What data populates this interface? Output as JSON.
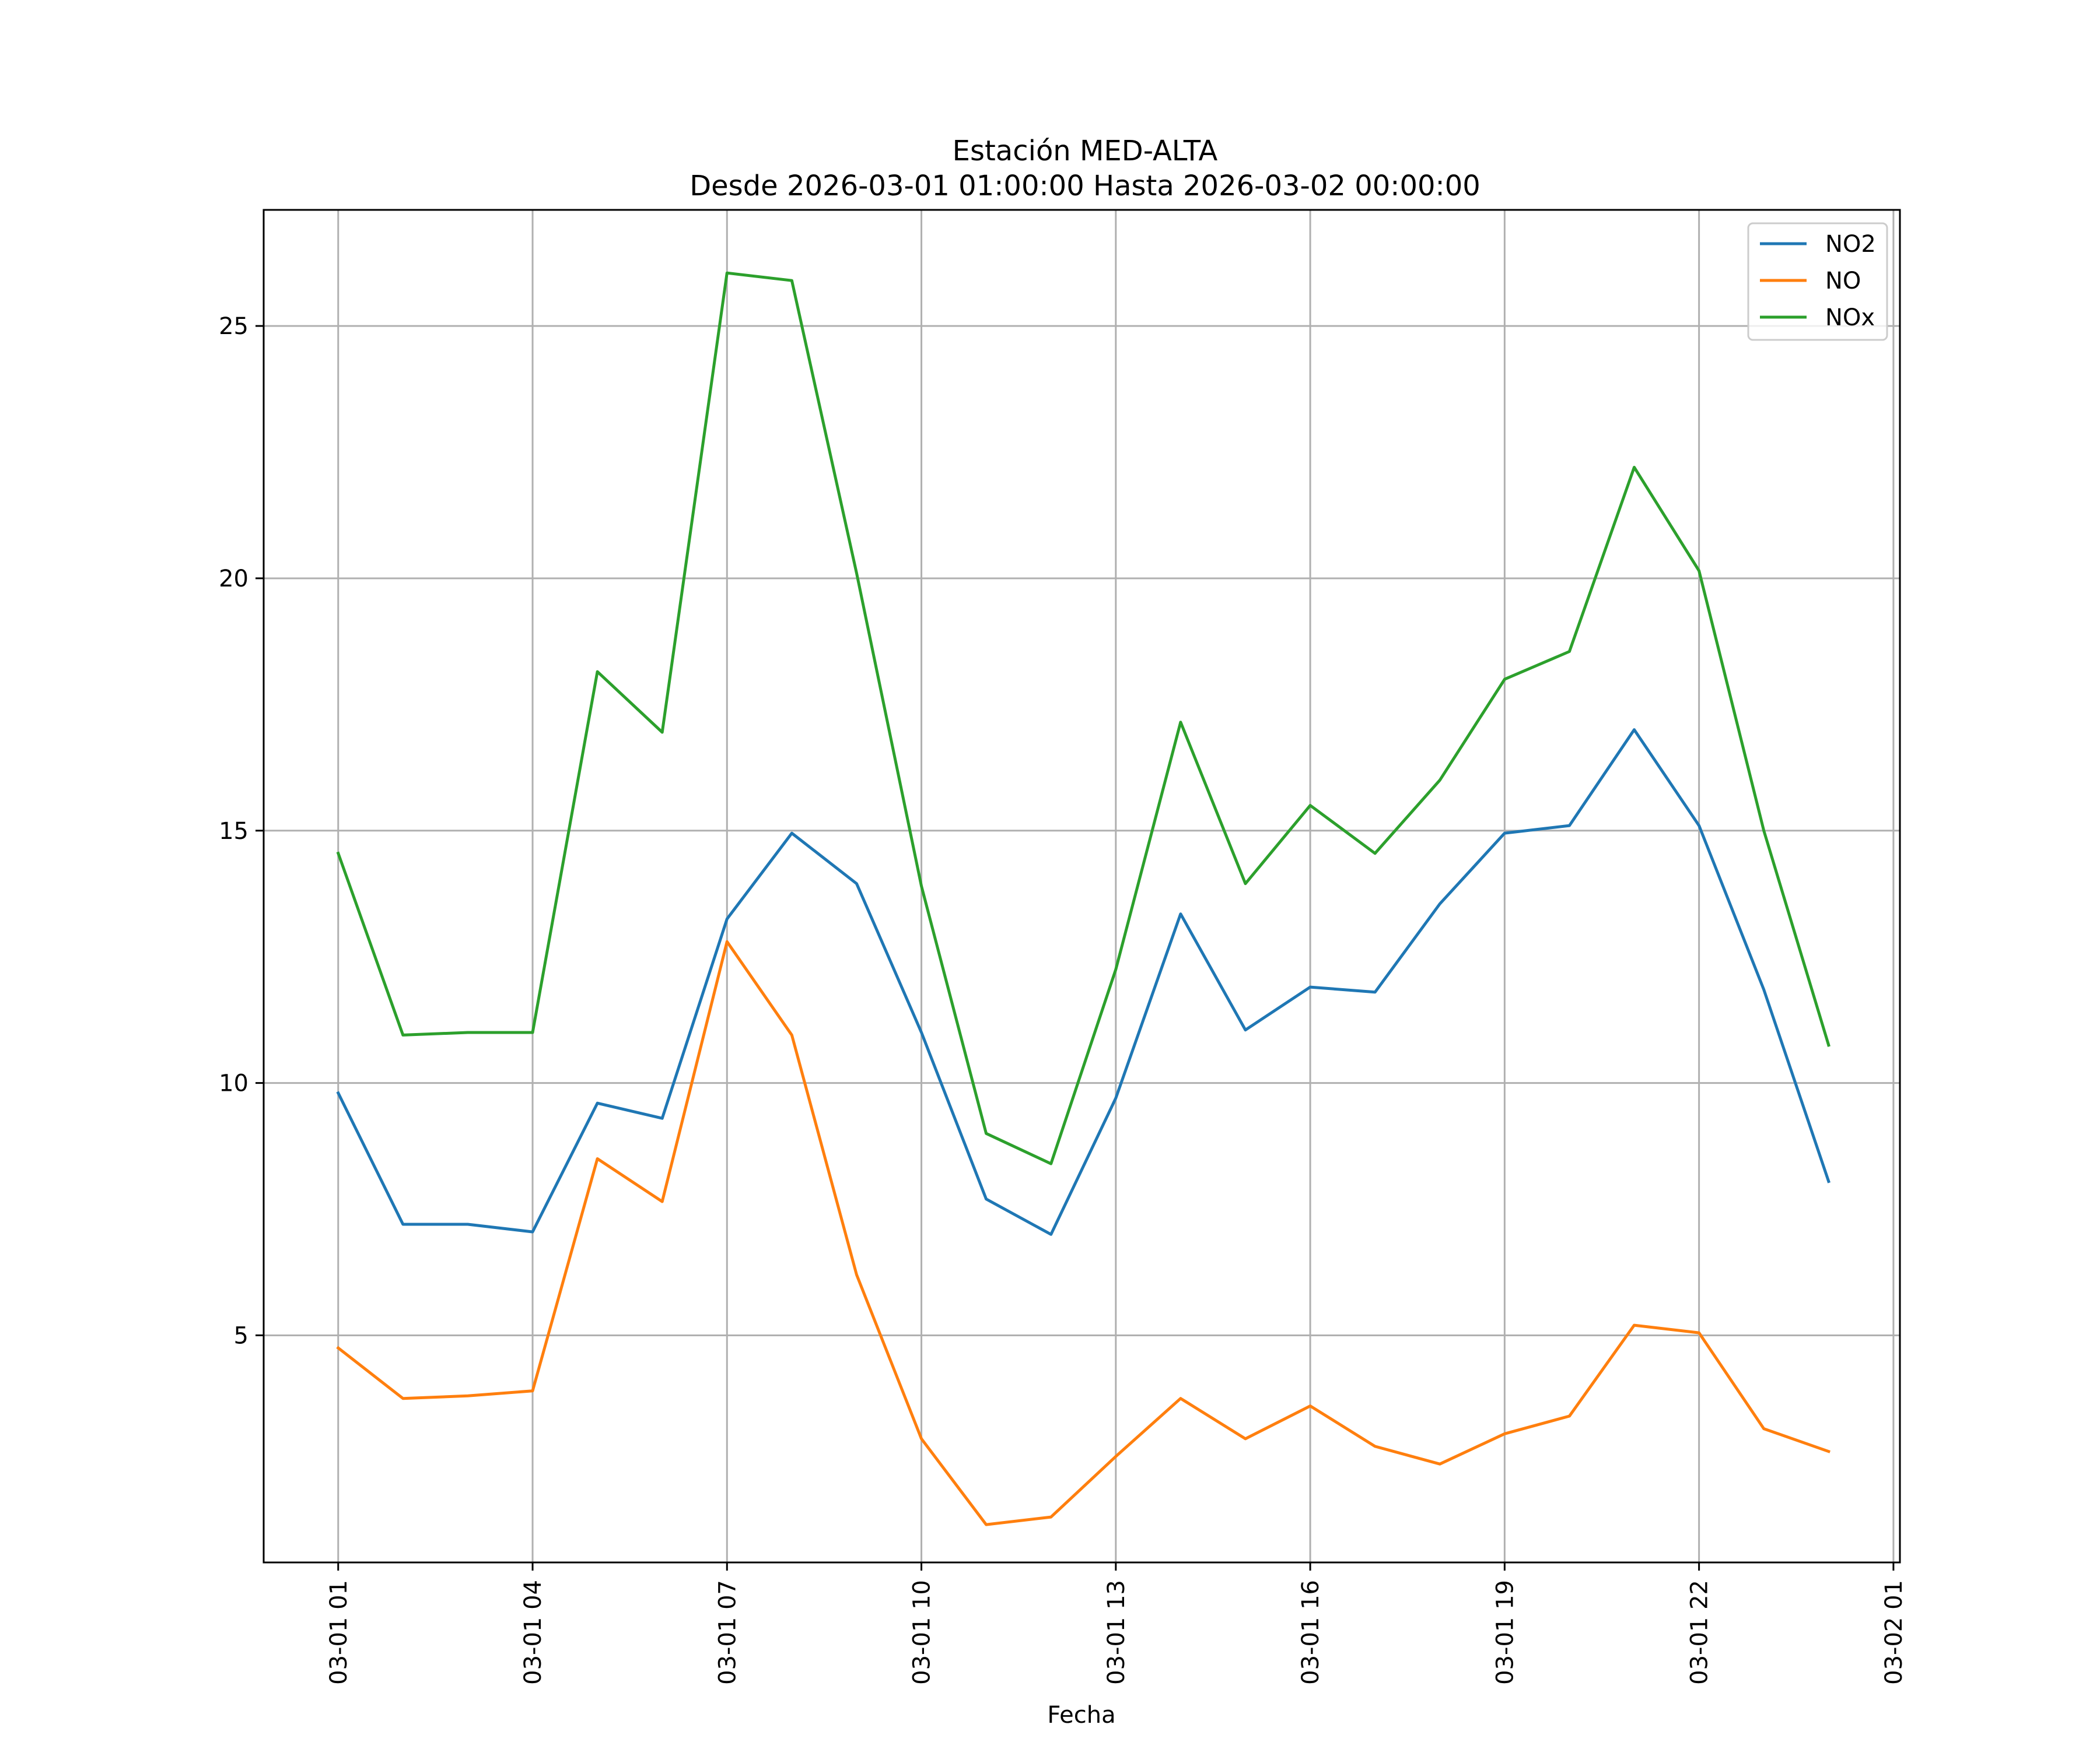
{
  "chart_data": {
    "type": "line",
    "title": "Estación MED-ALTA",
    "subtitle": "Desde 2026-03-01 01:00:00 Hasta 2026-03-02 00:00:00",
    "xlabel": "Fecha",
    "ylabel": "",
    "x": [
      1,
      2,
      3,
      4,
      5,
      6,
      7,
      8,
      9,
      10,
      11,
      12,
      13,
      14,
      15,
      16,
      17,
      18,
      19,
      20,
      21,
      22,
      23,
      24
    ],
    "xlim": [
      -0.15,
      25.1
    ],
    "ylim": [
      0.5,
      27.3
    ],
    "xticks": [
      {
        "value": 1,
        "label": "03-01 01"
      },
      {
        "value": 4,
        "label": "03-01 04"
      },
      {
        "value": 7,
        "label": "03-01 07"
      },
      {
        "value": 10,
        "label": "03-01 10"
      },
      {
        "value": 13,
        "label": "03-01 13"
      },
      {
        "value": 16,
        "label": "03-01 16"
      },
      {
        "value": 19,
        "label": "03-01 19"
      },
      {
        "value": 22,
        "label": "03-01 22"
      },
      {
        "value": 25,
        "label": "03-02 01"
      }
    ],
    "yticks": [
      {
        "value": 5,
        "label": "5"
      },
      {
        "value": 10,
        "label": "10"
      },
      {
        "value": 15,
        "label": "15"
      },
      {
        "value": 20,
        "label": "20"
      },
      {
        "value": 25,
        "label": "25"
      }
    ],
    "grid": true,
    "legend_position": "top-right",
    "series": [
      {
        "name": "NO2",
        "color": "#1f77b4",
        "values": [
          9.8,
          7.2,
          7.2,
          7.05,
          9.6,
          9.3,
          13.25,
          14.95,
          13.95,
          11.0,
          7.7,
          7.0,
          9.7,
          13.35,
          11.05,
          11.9,
          11.8,
          13.55,
          14.95,
          15.1,
          17.0,
          15.1,
          11.85,
          8.05
        ]
      },
      {
        "name": "NO",
        "color": "#ff7f0e",
        "values": [
          4.75,
          3.75,
          3.8,
          3.9,
          8.5,
          7.65,
          12.8,
          10.95,
          6.2,
          2.95,
          1.25,
          1.4,
          2.6,
          3.75,
          2.95,
          3.6,
          2.8,
          2.45,
          3.05,
          3.4,
          5.2,
          5.05,
          3.15,
          2.7
        ]
      },
      {
        "name": "NOx",
        "color": "#2ca02c",
        "values": [
          14.55,
          10.95,
          11.0,
          11.0,
          18.15,
          16.95,
          26.05,
          25.9,
          20.1,
          13.9,
          9.0,
          8.4,
          12.25,
          17.15,
          13.95,
          15.5,
          14.55,
          16.0,
          18.0,
          18.55,
          22.2,
          20.15,
          15.0,
          10.75
        ]
      }
    ]
  }
}
